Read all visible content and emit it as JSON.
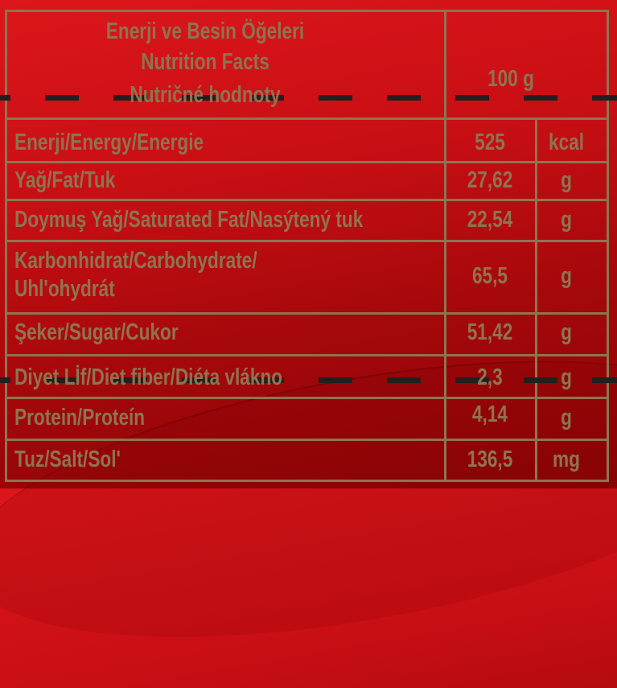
{
  "header": {
    "title_lines": [
      "Enerji ve Besin Öğeleri",
      "Nutrition Facts",
      "Nutričné hodnoty"
    ],
    "serving": "100 g"
  },
  "rows": [
    {
      "label": "Enerji/Energy/Energie",
      "value": "525",
      "unit": "kcal"
    },
    {
      "label": "Yağ/Fat/Tuk",
      "value": "27,62",
      "unit": "g"
    },
    {
      "label": "Doymuş Yağ/Saturated Fat/Nasýtený tuk",
      "value": "22,54",
      "unit": "g"
    },
    {
      "label": "Karbonhidrat/Carbohydrate/",
      "label2": "Uhl'ohydrát",
      "value": "65,5",
      "unit": "g"
    },
    {
      "label": "Şeker/Sugar/Cukor",
      "value": "51,42",
      "unit": "g"
    },
    {
      "label": "Diyet Lİf/Diet fiber/Diéta vlákno",
      "value": "2,3",
      "unit": "g"
    },
    {
      "label": "Protein/Proteín",
      "value": "4,14",
      "unit": "g"
    },
    {
      "label": "Tuz/Salt/Sol'",
      "value": "136,5",
      "unit": "mg"
    }
  ],
  "colors": {
    "background": "#c80f14",
    "text": "#8e7450",
    "dash": "#231f20"
  }
}
